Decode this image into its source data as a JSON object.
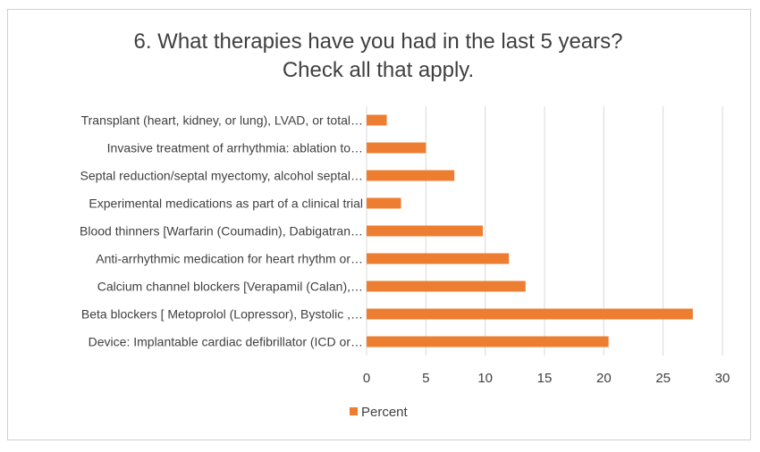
{
  "chart_data": {
    "type": "bar",
    "orientation": "horizontal",
    "title": "6. What therapies have you had in the last 5 years?",
    "subtitle": "Check all that apply.",
    "categories": [
      "Transplant (heart, kidney, or lung), LVAD, or total…",
      "Invasive treatment of arrhythmia: ablation to…",
      "Septal reduction/septal myectomy, alcohol septal…",
      "Experimental medications as part of a clinical trial",
      "Blood thinners [Warfarin (Coumadin), Dabigatran…",
      "Anti-arrhythmic medication for heart rhythm or…",
      "Calcium channel blockers [Verapamil (Calan),…",
      "Beta blockers [ Metoprolol (Lopressor), Bystolic ,…",
      "Device: Implantable cardiac defibrillator (ICD or…"
    ],
    "series": [
      {
        "name": "Percent",
        "color": "#ED7D31",
        "values": [
          1.7,
          5.0,
          7.4,
          2.9,
          9.8,
          12.0,
          13.4,
          27.5,
          20.4
        ]
      }
    ],
    "xlim": [
      0,
      30
    ],
    "xticks": [
      "0",
      "5",
      "10",
      "15",
      "20",
      "25",
      "30"
    ],
    "grid": true,
    "legend": "bottom-center"
  }
}
